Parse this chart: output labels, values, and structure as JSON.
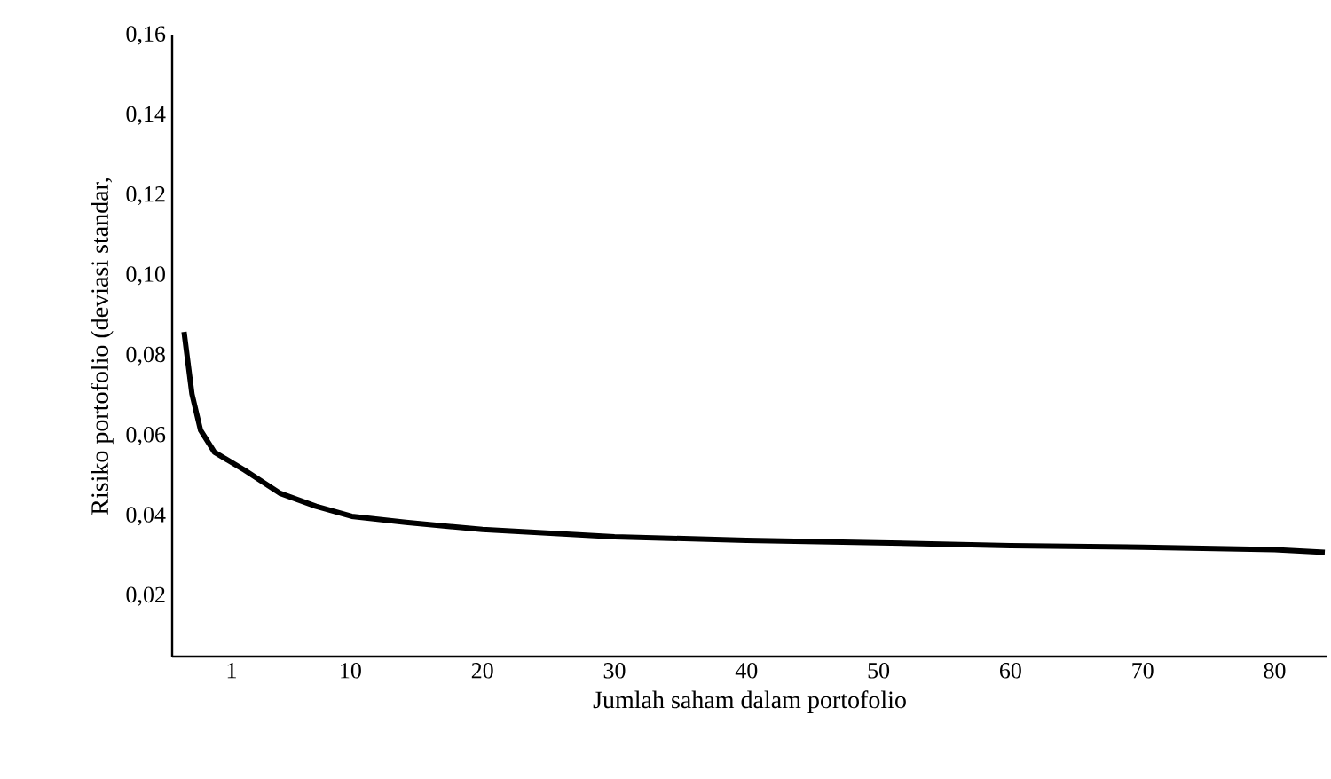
{
  "chart_data": {
    "type": "line",
    "xlabel": "Jumlah saham dalam portofolio",
    "ylabel": "Risiko portofolio (deviasi standar,",
    "xlim": [
      -3.5,
      84
    ],
    "ylim": [
      0.005,
      0.16
    ],
    "xticks": [
      1,
      10,
      20,
      30,
      40,
      50,
      60,
      70,
      80
    ],
    "yticks": [
      {
        "value": 0.02,
        "label": "0,02"
      },
      {
        "value": 0.04,
        "label": "0,04"
      },
      {
        "value": 0.06,
        "label": "0,06"
      },
      {
        "value": 0.08,
        "label": "0,08"
      },
      {
        "value": 0.1,
        "label": "0,10"
      },
      {
        "value": 0.12,
        "label": "0,12"
      },
      {
        "value": 0.14,
        "label": "0,14"
      },
      {
        "value": 0.16,
        "label": "0,16"
      }
    ],
    "marker": "none",
    "line_style": "solid",
    "grid": false,
    "series": [
      {
        "color": "#000000",
        "x": [
          -2.6,
          -2.0,
          -1.35,
          -0.3,
          2.0,
          4.7,
          7.4,
          10.1,
          14.2,
          20,
          30,
          40,
          50,
          60,
          70,
          80,
          83.8
        ],
        "values": [
          0.086,
          0.0705,
          0.0615,
          0.056,
          0.0515,
          0.0457,
          0.0425,
          0.04,
          0.0385,
          0.0367,
          0.0349,
          0.034,
          0.0334,
          0.0327,
          0.0323,
          0.0317,
          0.031
        ]
      }
    ]
  }
}
